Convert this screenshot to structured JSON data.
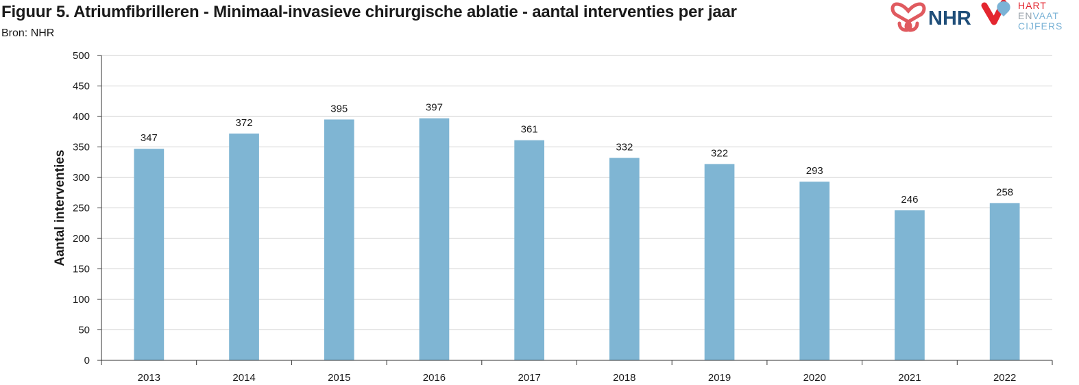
{
  "header": {
    "title": "Figuur 5. Atriumfibrilleren - Minimaal-invasieve chirurgische ablatie - aantal interventies per jaar",
    "source": "Bron: NHR"
  },
  "logos": {
    "nhr": {
      "text": "NHR",
      "colors": {
        "mark": "#e05a5f",
        "text": "#1f4e79"
      }
    },
    "hart_en_vaat_cijfers": {
      "line1": "HART",
      "line2a": "EN",
      "line2b": "VAAT",
      "line3": "CIJFERS",
      "colors": {
        "red": "#e3262f",
        "blue": "#7bb3d6",
        "grey": "#9aa3ab"
      }
    }
  },
  "colors": {
    "bar": "#7fb5d3",
    "grid": "#cfcfcf",
    "axis": "#333333"
  },
  "chart_data": {
    "type": "bar",
    "title": "Figuur 5. Atriumfibrilleren - Minimaal-invasieve chirurgische ablatie - aantal interventies per jaar",
    "xlabel": "",
    "ylabel": "Aantal interventies",
    "categories": [
      "2013",
      "2014",
      "2015",
      "2016",
      "2017",
      "2018",
      "2019",
      "2020",
      "2021",
      "2022"
    ],
    "values": [
      347,
      372,
      395,
      397,
      361,
      332,
      322,
      293,
      246,
      258
    ],
    "ylim": [
      0,
      500
    ],
    "yticks": [
      0,
      50,
      100,
      150,
      200,
      250,
      300,
      350,
      400,
      450,
      500
    ],
    "grid": true,
    "data_labels": true
  }
}
